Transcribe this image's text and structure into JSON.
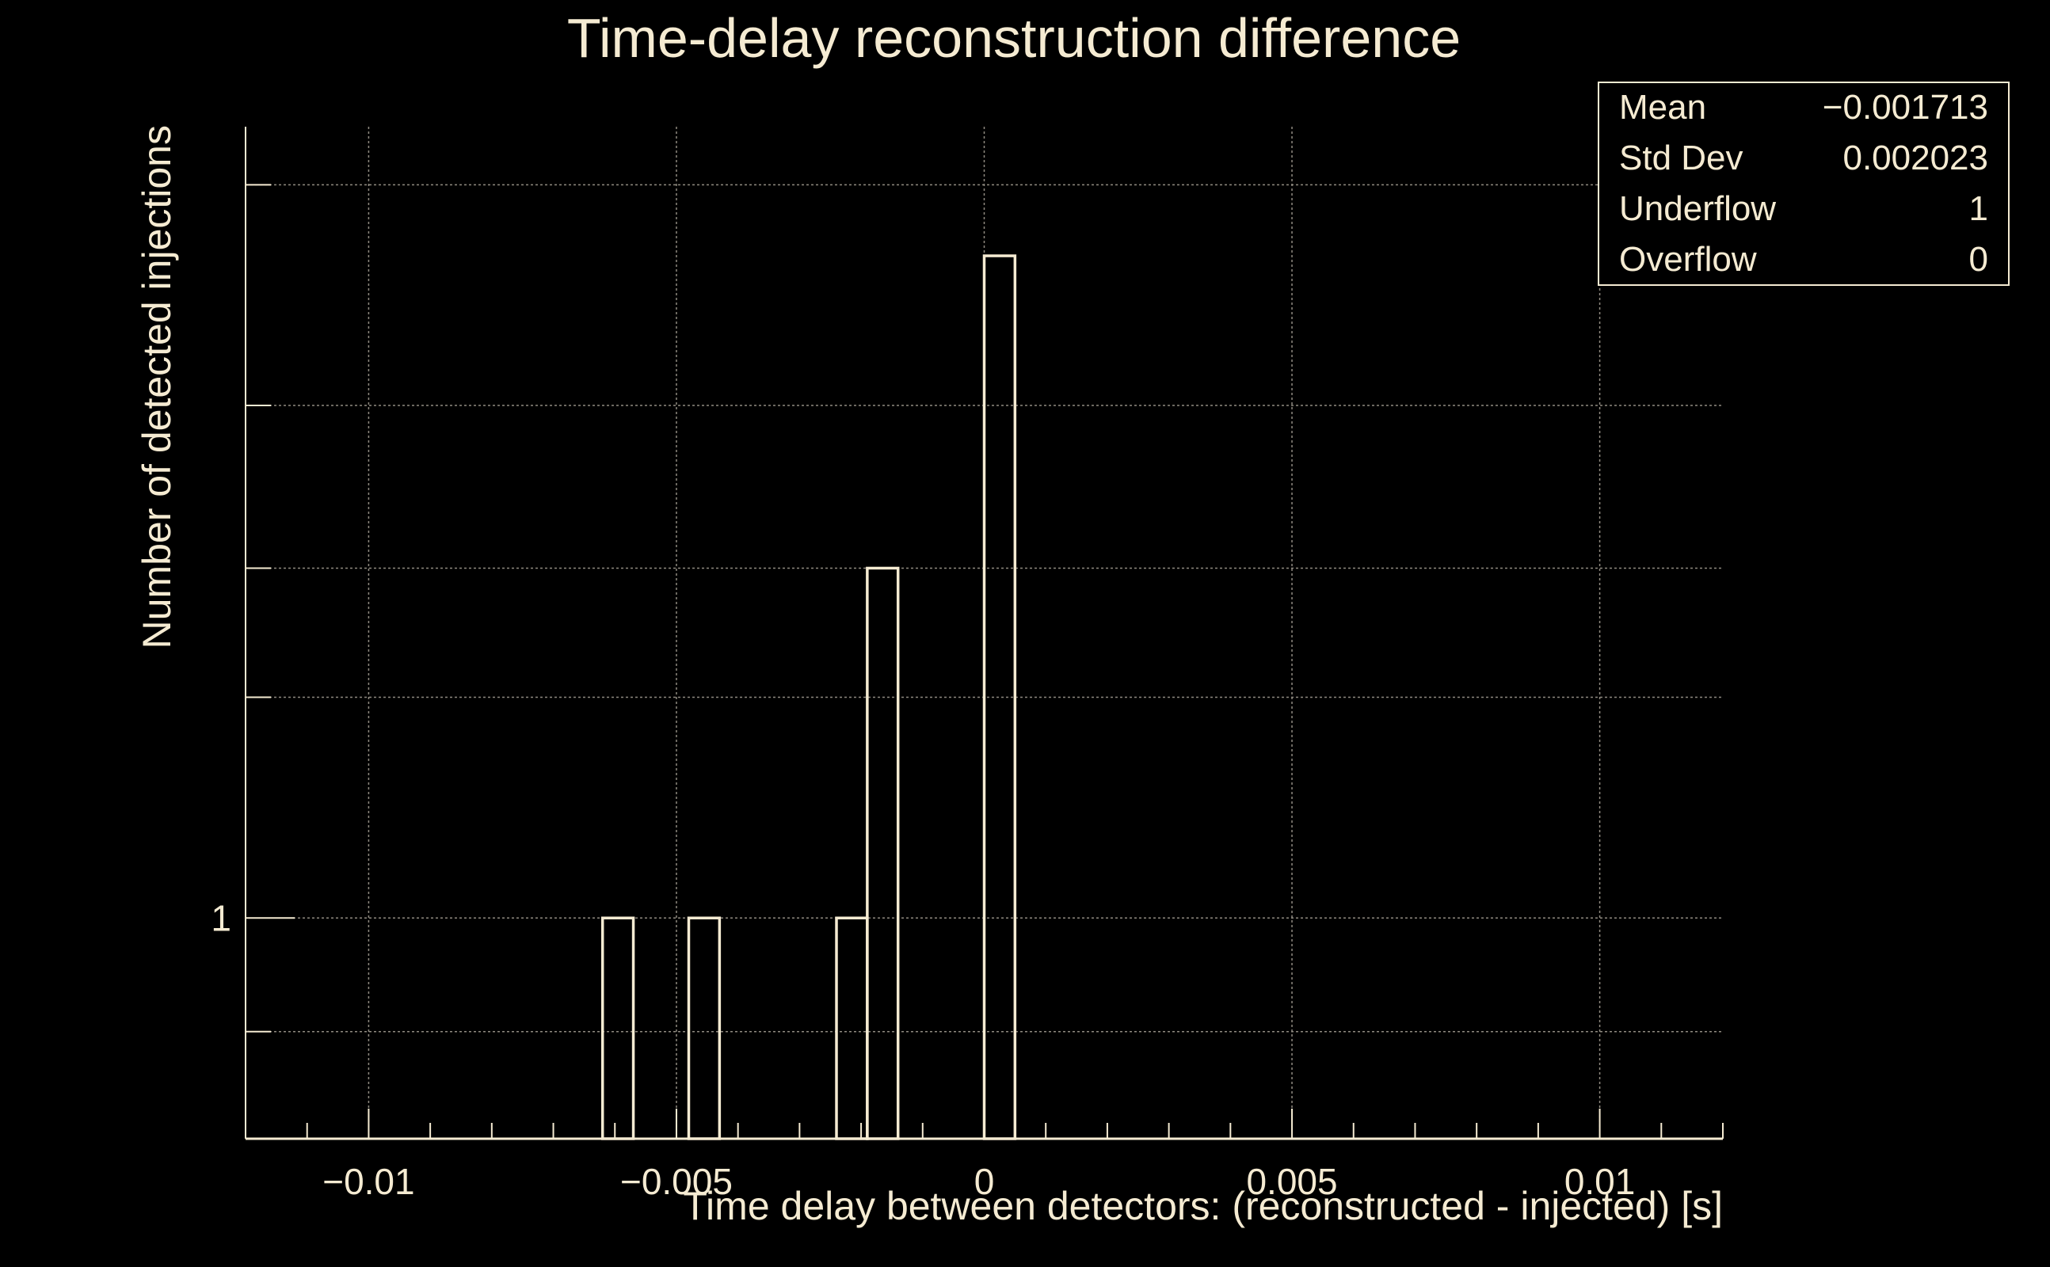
{
  "colors": {
    "background": "#000000",
    "foreground": "#f5ebd2",
    "grid": "#8f8a80"
  },
  "chart_data": {
    "type": "bar",
    "histogram": true,
    "title": "Time-delay reconstruction difference",
    "xlabel": "Time delay between detectors: (reconstructed - injected) [s]",
    "ylabel": "Number of detected injections",
    "xlim": [
      -0.012,
      0.012
    ],
    "ylim": [
      0.5,
      12
    ],
    "y_scale": "log",
    "grid": true,
    "x_ticks": [
      {
        "value": -0.01,
        "label": "−0.01"
      },
      {
        "value": -0.005,
        "label": "−0.005"
      },
      {
        "value": 0,
        "label": "0"
      },
      {
        "value": 0.005,
        "label": "0.005"
      },
      {
        "value": 0.01,
        "label": "0.01"
      }
    ],
    "y_ticks": [
      {
        "value": 1,
        "label": "1"
      }
    ],
    "bin_width": 0.0005,
    "bins": [
      {
        "x0": -0.0062,
        "x1": -0.0057,
        "count": 1
      },
      {
        "x0": -0.0048,
        "x1": -0.0043,
        "count": 1
      },
      {
        "x0": -0.0024,
        "x1": -0.0019,
        "count": 1
      },
      {
        "x0": -0.0019,
        "x1": -0.0014,
        "count": 3
      },
      {
        "x0": 0.0,
        "x1": 0.0005,
        "count": 8
      }
    ],
    "stats": [
      {
        "name": "Mean",
        "value": "−0.001713"
      },
      {
        "name": "Std Dev",
        "value": "0.002023"
      },
      {
        "name": "Underflow",
        "value": "1"
      },
      {
        "name": "Overflow",
        "value": "0"
      }
    ]
  }
}
